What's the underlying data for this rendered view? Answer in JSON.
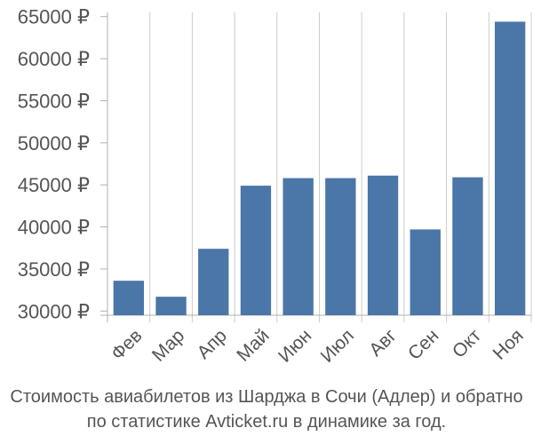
{
  "chart_data": {
    "type": "bar",
    "categories": [
      "Фев",
      "Мар",
      "Апр",
      "Май",
      "Июн",
      "Июл",
      "Авг",
      "Сен",
      "Окт",
      "Ноя"
    ],
    "values": [
      33600,
      31700,
      37400,
      44900,
      45800,
      45800,
      46100,
      39700,
      45900,
      64400
    ],
    "ylim": [
      29500,
      65500
    ],
    "yticks": [
      30000,
      35000,
      40000,
      45000,
      50000,
      55000,
      60000,
      65000
    ],
    "ytick_labels": [
      "30000 ₽",
      "35000 ₽",
      "40000 ₽",
      "45000 ₽",
      "50000 ₽",
      "55000 ₽",
      "60000 ₽",
      "65000 ₽"
    ],
    "grid": "vertical",
    "bar_color": "#4a76a8",
    "grid_color": "#cccccc",
    "axis_color": "#b0b0b0",
    "tick_label_color": "#555555"
  },
  "caption": {
    "line1": "Стоимость авиабилетов из Шарджа в Сочи (Адлер) и обратно",
    "line2": "по статистике Avticket.ru в динамике за год."
  }
}
